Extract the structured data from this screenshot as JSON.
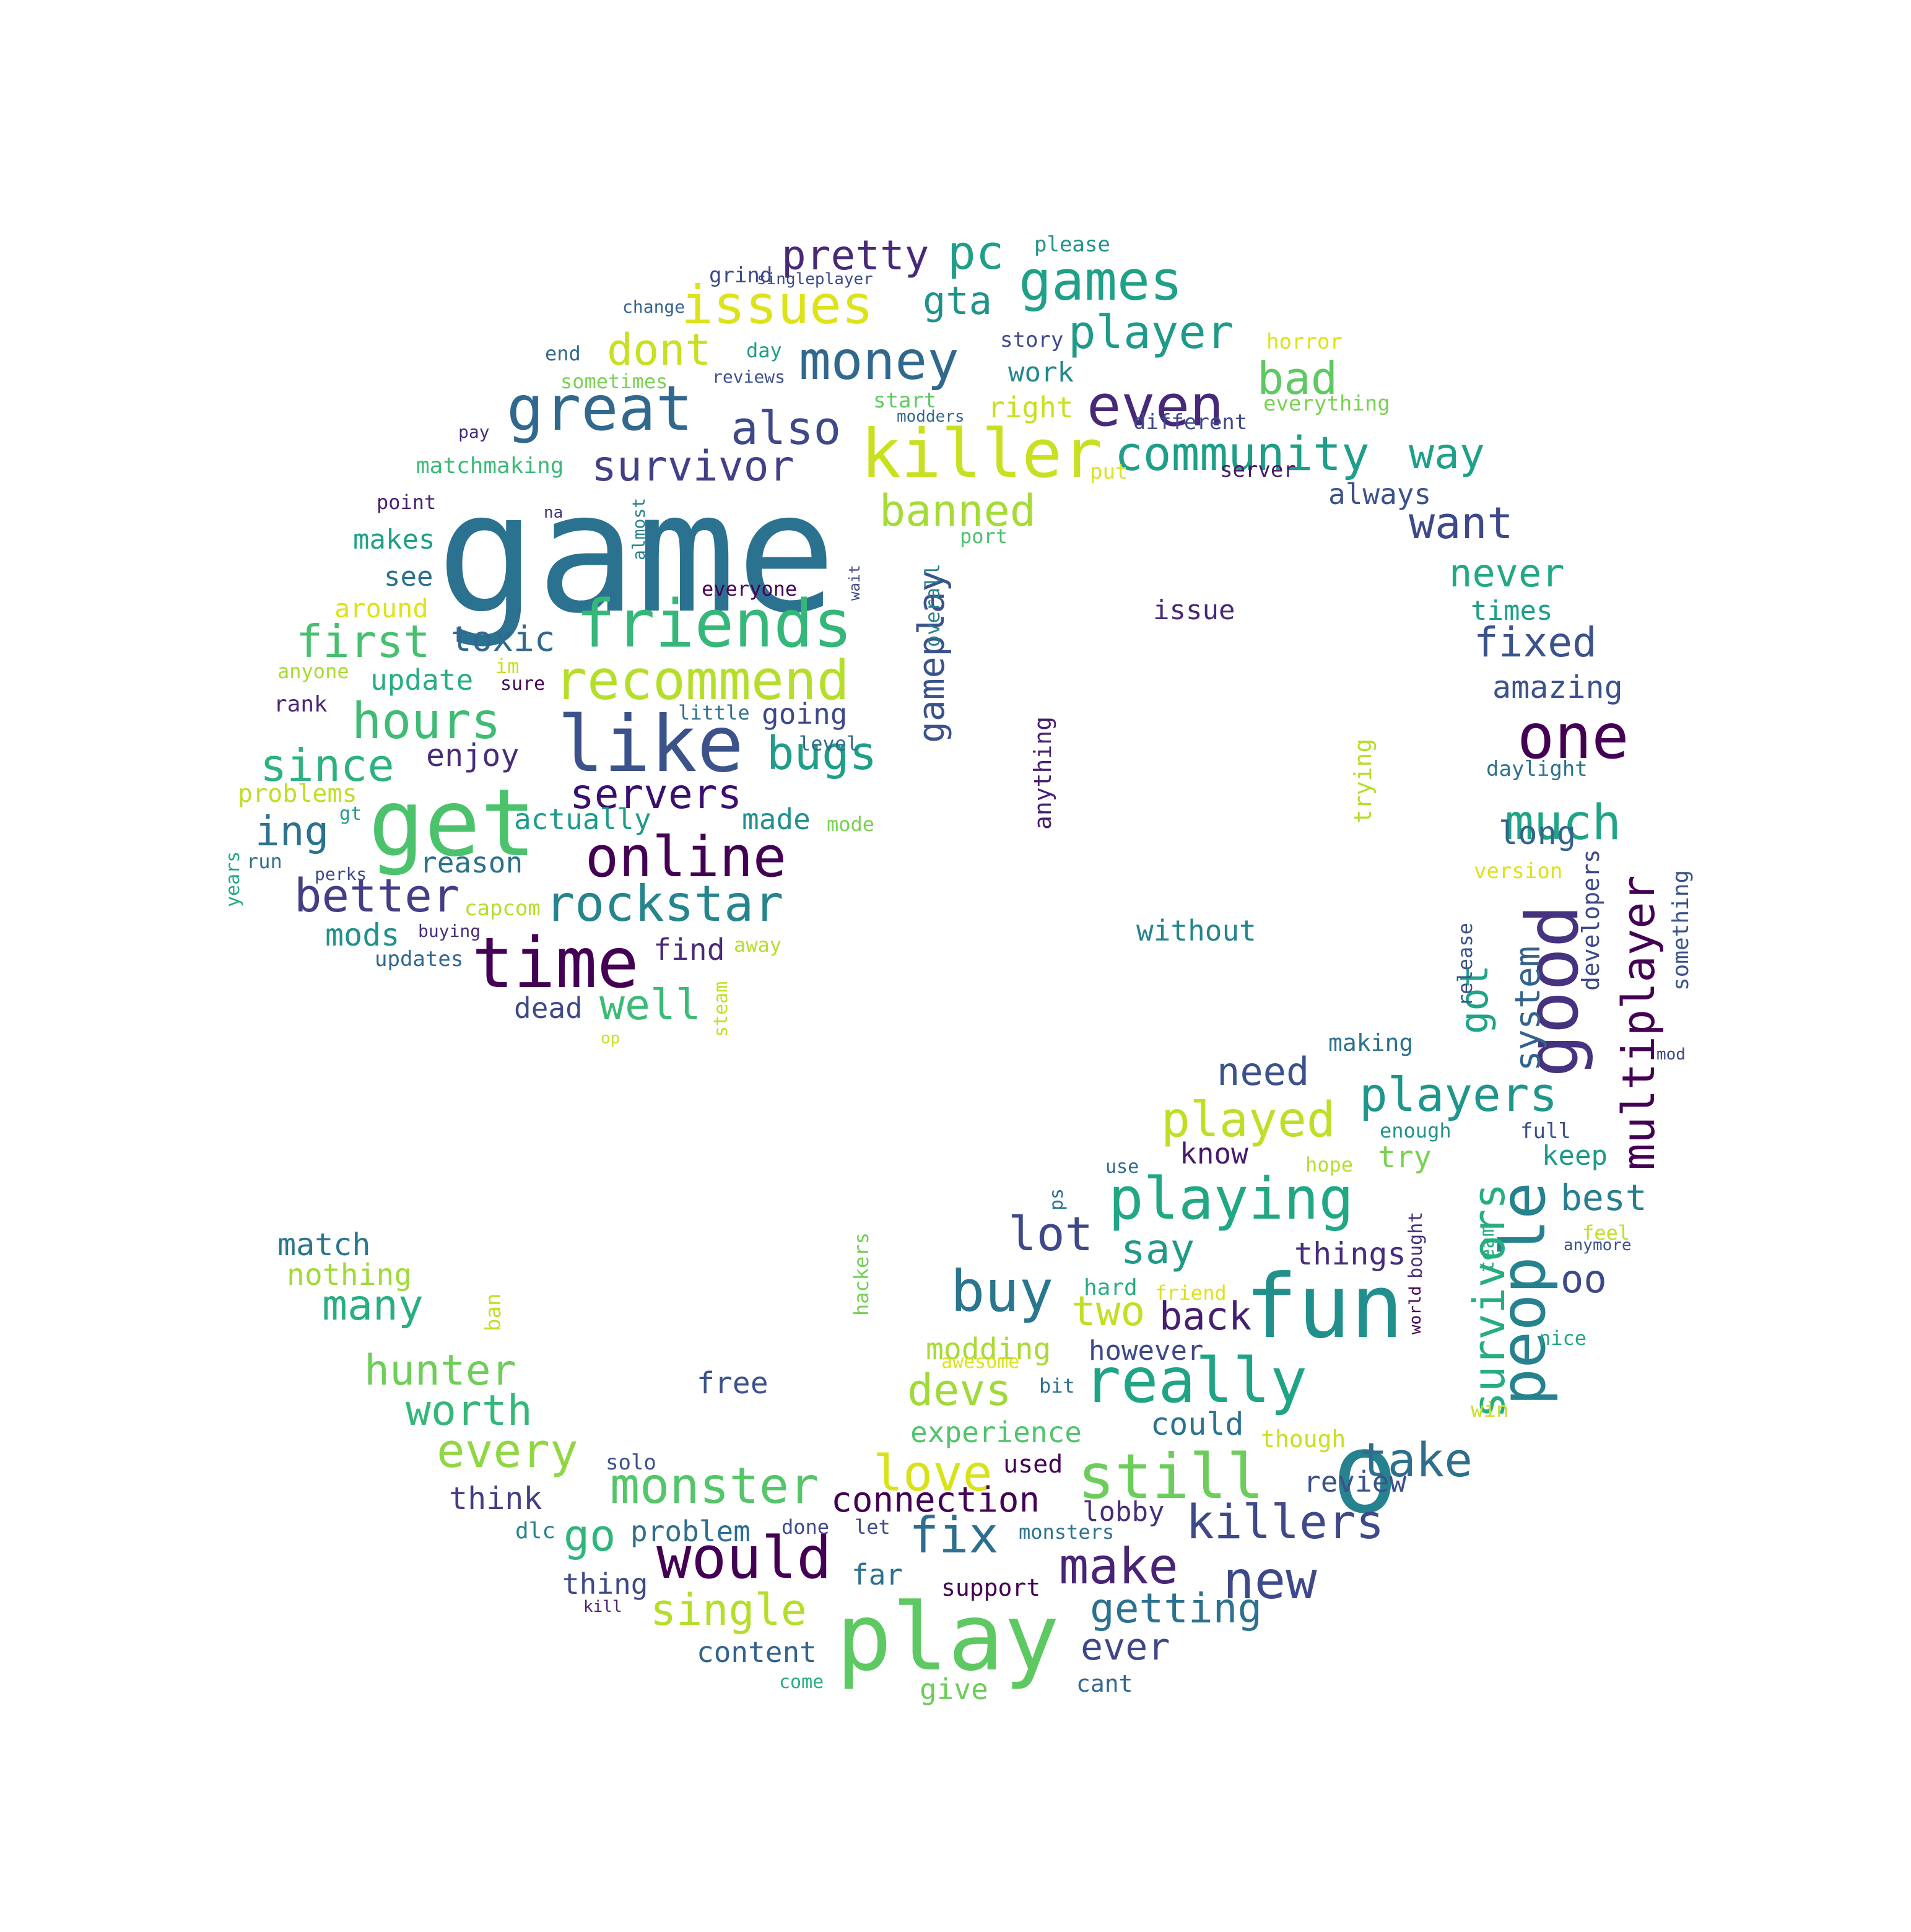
{
  "words": [
    {
      "text": "game",
      "color": "#2b7290"
    },
    {
      "text": "play",
      "color": "#5ec962"
    },
    {
      "text": "fun",
      "color": "#21908d"
    },
    {
      "text": "get",
      "color": "#4cc26c"
    },
    {
      "text": "like",
      "color": "#3b528b"
    },
    {
      "text": "time",
      "color": "#440154"
    },
    {
      "text": "killer",
      "color": "#c8e020"
    },
    {
      "text": "great",
      "color": "#31688e"
    },
    {
      "text": "friends",
      "color": "#35b779"
    },
    {
      "text": "good",
      "color": "#46327e"
    },
    {
      "text": "people",
      "color": "#26828e"
    },
    {
      "text": "really",
      "color": "#20a486"
    },
    {
      "text": "online",
      "color": "#440154"
    },
    {
      "text": "one",
      "color": "#440154"
    },
    {
      "text": "recommend",
      "color": "#b5de2b"
    },
    {
      "text": "still",
      "color": "#6ccd5a"
    },
    {
      "text": "would",
      "color": "#440154"
    },
    {
      "text": "playing",
      "color": "#22a785"
    },
    {
      "text": "issues",
      "color": "#dde318"
    },
    {
      "text": "games",
      "color": "#1fa088"
    },
    {
      "text": "money",
      "color": "#31688e"
    },
    {
      "text": "even",
      "color": "#482878"
    },
    {
      "text": "buy",
      "color": "#2a768e"
    },
    {
      "text": "rockstar",
      "color": "#25848e"
    },
    {
      "text": "multiplayer",
      "color": "#440154"
    },
    {
      "text": "o",
      "color": "#26828e"
    },
    {
      "text": "hours",
      "color": "#3fbc73"
    },
    {
      "text": "monster",
      "color": "#54c568"
    },
    {
      "text": "players",
      "color": "#1f968b"
    },
    {
      "text": "new",
      "color": "#3e4989"
    },
    {
      "text": "make",
      "color": "#482475"
    },
    {
      "text": "fix",
      "color": "#2e6e8e"
    },
    {
      "text": "much",
      "color": "#20a486"
    },
    {
      "text": "love",
      "color": "#d8e219"
    },
    {
      "text": "played",
      "color": "#bddf26"
    },
    {
      "text": "survivors",
      "color": "#26ad81"
    },
    {
      "text": "killers",
      "color": "#3e4989"
    },
    {
      "text": "take",
      "color": "#2e6e8e"
    },
    {
      "text": "community",
      "color": "#1f9e89"
    },
    {
      "text": "pc",
      "color": "#1f9e89"
    },
    {
      "text": "player",
      "color": "#1f9a8a"
    },
    {
      "text": "also",
      "color": "#3e4989"
    },
    {
      "text": "survivor",
      "color": "#424086"
    },
    {
      "text": "banned",
      "color": "#a5db36"
    },
    {
      "text": "gameplay",
      "color": "#3b528b"
    },
    {
      "text": "servers",
      "color": "#3b0f70"
    },
    {
      "text": "bugs",
      "color": "#1f9e89"
    },
    {
      "text": "first",
      "color": "#46c06f"
    },
    {
      "text": "since",
      "color": "#2db27d"
    },
    {
      "text": "better",
      "color": "#433e85"
    },
    {
      "text": "well",
      "color": "#3bbb75"
    },
    {
      "text": "every",
      "color": "#90d743"
    },
    {
      "text": "worth",
      "color": "#35b779"
    },
    {
      "text": "hunter",
      "color": "#6ece58"
    },
    {
      "text": "many",
      "color": "#29af7f"
    },
    {
      "text": "single",
      "color": "#b5de2b"
    },
    {
      "text": "go",
      "color": "#2fb47c"
    },
    {
      "text": "getting",
      "color": "#2c728e"
    },
    {
      "text": "dont",
      "color": "#c8e020"
    },
    {
      "text": "pretty",
      "color": "#482878"
    },
    {
      "text": "bad",
      "color": "#5ec962"
    },
    {
      "text": "want",
      "color": "#3e4989"
    },
    {
      "text": "way",
      "color": "#1fa088"
    },
    {
      "text": "never",
      "color": "#22a884"
    },
    {
      "text": "fixed",
      "color": "#3b528b"
    },
    {
      "text": "lot",
      "color": "#3e4989"
    },
    {
      "text": "got",
      "color": "#20a386"
    },
    {
      "text": "system",
      "color": "#33638d"
    },
    {
      "text": "need",
      "color": "#3b528b"
    },
    {
      "text": "oo",
      "color": "#3e4989"
    },
    {
      "text": "best",
      "color": "#287d8e"
    },
    {
      "text": "say",
      "color": "#1f9a8a"
    },
    {
      "text": "two",
      "color": "#c2df23"
    },
    {
      "text": "back",
      "color": "#481f70"
    },
    {
      "text": "devs",
      "color": "#a0da39"
    },
    {
      "text": "connection",
      "color": "#440154"
    },
    {
      "text": "gta",
      "color": "#21918c"
    },
    {
      "text": "toxic",
      "color": "#31688e"
    },
    {
      "text": "ing",
      "color": "#2c728e"
    },
    {
      "text": "ever",
      "color": "#3f4788"
    },
    {
      "text": "amazing",
      "color": "#3b528b"
    },
    {
      "text": "long",
      "color": "#33638d"
    },
    {
      "text": "things",
      "color": "#472d7b"
    },
    {
      "text": "enjoy",
      "color": "#472c7a"
    },
    {
      "text": "update",
      "color": "#27ad81"
    },
    {
      "text": "actually",
      "color": "#1e9b8a"
    },
    {
      "text": "made",
      "color": "#21908d"
    },
    {
      "text": "going",
      "color": "#3e4989"
    },
    {
      "text": "reason",
      "color": "#2d708e"
    },
    {
      "text": "find",
      "color": "#472c7a"
    },
    {
      "text": "dead",
      "color": "#3e4989"
    },
    {
      "text": "mods",
      "color": "#21918c"
    },
    {
      "text": "makes",
      "color": "#1fa088"
    },
    {
      "text": "see",
      "color": "#2c728e"
    },
    {
      "text": "right",
      "color": "#c8e020"
    },
    {
      "text": "work",
      "color": "#24878e"
    },
    {
      "text": "always",
      "color": "#3b528b"
    },
    {
      "text": "times",
      "color": "#1fa088"
    },
    {
      "text": "could",
      "color": "#2c728e"
    },
    {
      "text": "experience",
      "color": "#50c46a"
    },
    {
      "text": "modding",
      "color": "#a8db34"
    },
    {
      "text": "however",
      "color": "#3e4989"
    },
    {
      "text": "think",
      "color": "#433e85"
    },
    {
      "text": "problem",
      "color": "#2e6e8e"
    },
    {
      "text": "thing",
      "color": "#3e4989"
    },
    {
      "text": "far",
      "color": "#2c728e"
    },
    {
      "text": "free",
      "color": "#3b528b"
    },
    {
      "text": "content",
      "color": "#33638d"
    },
    {
      "text": "give",
      "color": "#6ccd5a"
    },
    {
      "text": "support",
      "color": "#440154"
    },
    {
      "text": "lobby",
      "color": "#472c7a"
    },
    {
      "text": "review",
      "color": "#3b528b"
    },
    {
      "text": "try",
      "color": "#7ad151"
    },
    {
      "text": "keep",
      "color": "#1f9a8a"
    },
    {
      "text": "know",
      "color": "#481a6c"
    },
    {
      "text": "match",
      "color": "#2a768e"
    },
    {
      "text": "nothing",
      "color": "#9fda3a"
    },
    {
      "text": "without",
      "color": "#25848e"
    },
    {
      "text": "issue",
      "color": "#482878"
    },
    {
      "text": "around",
      "color": "#dde318"
    },
    {
      "text": "rank",
      "color": "#482576"
    },
    {
      "text": "problems",
      "color": "#bddf26"
    },
    {
      "text": "matchmaking",
      "color": "#3aba76"
    },
    {
      "text": "point",
      "color": "#482173"
    },
    {
      "text": "port",
      "color": "#4ac16d"
    },
    {
      "text": "server",
      "color": "#481a6c"
    },
    {
      "text": "different",
      "color": "#3e4989"
    },
    {
      "text": "everything",
      "color": "#7ad151"
    },
    {
      "text": "horror",
      "color": "#dde318"
    },
    {
      "text": "put",
      "color": "#dde318"
    },
    {
      "text": "start",
      "color": "#60ca60"
    },
    {
      "text": "modders",
      "color": "#31688e"
    },
    {
      "text": "story",
      "color": "#3e4989"
    },
    {
      "text": "day",
      "color": "#1f9e89"
    },
    {
      "text": "end",
      "color": "#31688e"
    },
    {
      "text": "sometimes",
      "color": "#7ad151"
    },
    {
      "text": "reviews",
      "color": "#3b528b"
    },
    {
      "text": "change",
      "color": "#33638d"
    },
    {
      "text": "grind",
      "color": "#3e4989"
    },
    {
      "text": "singleplayer",
      "color": "#3e4989"
    },
    {
      "text": "please",
      "color": "#21918c"
    },
    {
      "text": "pay",
      "color": "#482878"
    },
    {
      "text": "na",
      "color": "#46327e"
    },
    {
      "text": "almost",
      "color": "#26828e"
    },
    {
      "text": "wait",
      "color": "#3e4989"
    },
    {
      "text": "overall",
      "color": "#26828e"
    },
    {
      "text": "everyone",
      "color": "#440154"
    },
    {
      "text": "anyone",
      "color": "#a8db34"
    },
    {
      "text": "im",
      "color": "#c8e020"
    },
    {
      "text": "sure",
      "color": "#440154"
    },
    {
      "text": "little",
      "color": "#2c728e"
    },
    {
      "text": "level",
      "color": "#31688e"
    },
    {
      "text": "gt",
      "color": "#1f9a8a"
    },
    {
      "text": "mode",
      "color": "#7ad151"
    },
    {
      "text": "run",
      "color": "#2c728e"
    },
    {
      "text": "perks",
      "color": "#3e4989"
    },
    {
      "text": "years",
      "color": "#22a884"
    },
    {
      "text": "capcom",
      "color": "#b5de2b"
    },
    {
      "text": "buying",
      "color": "#472d7b"
    },
    {
      "text": "updates",
      "color": "#31688e"
    },
    {
      "text": "away",
      "color": "#b5de2b"
    },
    {
      "text": "steam",
      "color": "#c2df23"
    },
    {
      "text": "op",
      "color": "#c8e020"
    },
    {
      "text": "anything",
      "color": "#481f70"
    },
    {
      "text": "trying",
      "color": "#b5de2b"
    },
    {
      "text": "daylight",
      "color": "#2c728e"
    },
    {
      "text": "version",
      "color": "#dde318"
    },
    {
      "text": "developers",
      "color": "#3e4989"
    },
    {
      "text": "something",
      "color": "#3b528b"
    },
    {
      "text": "release",
      "color": "#3b528b"
    },
    {
      "text": "making",
      "color": "#2c728e"
    },
    {
      "text": "mod",
      "color": "#3e4989"
    },
    {
      "text": "enough",
      "color": "#21918c"
    },
    {
      "text": "full",
      "color": "#3b528b"
    },
    {
      "text": "hope",
      "color": "#b5de2b"
    },
    {
      "text": "use",
      "color": "#31688e"
    },
    {
      "text": "ps",
      "color": "#2c728e"
    },
    {
      "text": "hackers",
      "color": "#75d054"
    },
    {
      "text": "feel",
      "color": "#bddf26"
    },
    {
      "text": "anymore",
      "color": "#3b528b"
    },
    {
      "text": "bought",
      "color": "#472d7b"
    },
    {
      "text": "team",
      "color": "#26ad81"
    },
    {
      "text": "world",
      "color": "#440154"
    },
    {
      "text": "hard",
      "color": "#27ad81"
    },
    {
      "text": "friend",
      "color": "#dde318"
    },
    {
      "text": "ban",
      "color": "#c2df23"
    },
    {
      "text": "awesome",
      "color": "#dde318"
    },
    {
      "text": "bit",
      "color": "#2c728e"
    },
    {
      "text": "nice",
      "color": "#22a884"
    },
    {
      "text": "win",
      "color": "#c8e020"
    },
    {
      "text": "though",
      "color": "#c8e020"
    },
    {
      "text": "used",
      "color": "#440154"
    },
    {
      "text": "solo",
      "color": "#3b528b"
    },
    {
      "text": "dlc",
      "color": "#26828e"
    },
    {
      "text": "done",
      "color": "#3e4989"
    },
    {
      "text": "let",
      "color": "#3e4989"
    },
    {
      "text": "monsters",
      "color": "#2c728e"
    },
    {
      "text": "kill",
      "color": "#482173"
    },
    {
      "text": "come",
      "color": "#26ad81"
    },
    {
      "text": "cant",
      "color": "#31688e"
    }
  ]
}
